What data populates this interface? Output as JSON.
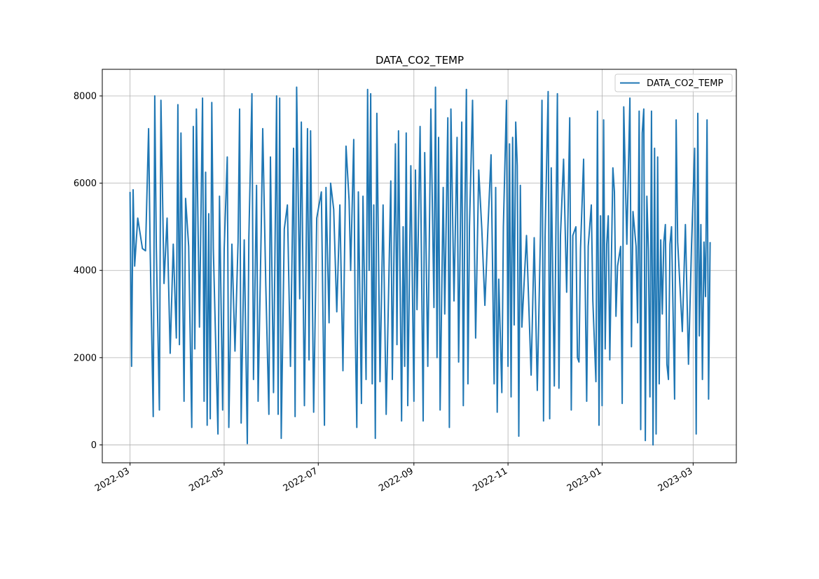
{
  "chart_data": {
    "type": "line",
    "title": "DATA_CO2_TEMP",
    "xlabel": "",
    "ylabel": "",
    "x_origin": "2022-03-01",
    "x_unit": "days since x_origin",
    "xlim": [
      "2022-02-11",
      "2023-03-29"
    ],
    "ylim": [
      -410,
      8610
    ],
    "grid": true,
    "legend": {
      "entries": [
        "DATA_CO2_TEMP"
      ],
      "placement": "top-right"
    },
    "x_ticks": [
      {
        "label": "2022-03",
        "day": 0
      },
      {
        "label": "2022-05",
        "day": 61
      },
      {
        "label": "2022-07",
        "day": 122
      },
      {
        "label": "2022-09",
        "day": 184
      },
      {
        "label": "2022-11",
        "day": 245
      },
      {
        "label": "2023-01",
        "day": 306
      },
      {
        "label": "2023-03",
        "day": 365
      }
    ],
    "y_ticks": [
      0,
      2000,
      4000,
      6000,
      8000
    ],
    "series": [
      {
        "name": "DATA_CO2_TEMP",
        "color": "#1f77b4",
        "points": [
          [
            0,
            5800
          ],
          [
            1,
            1800
          ],
          [
            2,
            5850
          ],
          [
            3,
            4100
          ],
          [
            5,
            5200
          ],
          [
            8,
            4500
          ],
          [
            10,
            4450
          ],
          [
            12,
            7250
          ],
          [
            13,
            4500
          ],
          [
            15,
            650
          ],
          [
            16,
            8000
          ],
          [
            17,
            4550
          ],
          [
            19,
            800
          ],
          [
            20,
            7900
          ],
          [
            22,
            3700
          ],
          [
            24,
            5200
          ],
          [
            26,
            2100
          ],
          [
            28,
            4600
          ],
          [
            30,
            2450
          ],
          [
            31,
            7800
          ],
          [
            32,
            2300
          ],
          [
            33,
            7150
          ],
          [
            35,
            1000
          ],
          [
            36,
            5650
          ],
          [
            38,
            4550
          ],
          [
            40,
            400
          ],
          [
            41,
            7300
          ],
          [
            42,
            2200
          ],
          [
            43,
            7700
          ],
          [
            45,
            2700
          ],
          [
            47,
            7950
          ],
          [
            48,
            1000
          ],
          [
            49,
            6250
          ],
          [
            50,
            450
          ],
          [
            51,
            5300
          ],
          [
            52,
            600
          ],
          [
            53,
            7850
          ],
          [
            54,
            4500
          ],
          [
            57,
            250
          ],
          [
            58,
            5700
          ],
          [
            60,
            800
          ],
          [
            61,
            4500
          ],
          [
            63,
            6600
          ],
          [
            64,
            400
          ],
          [
            66,
            4600
          ],
          [
            68,
            2150
          ],
          [
            70,
            4650
          ],
          [
            71,
            7700
          ],
          [
            72,
            500
          ],
          [
            74,
            4700
          ],
          [
            76,
            30
          ],
          [
            77,
            4750
          ],
          [
            79,
            8050
          ],
          [
            80,
            1500
          ],
          [
            82,
            5950
          ],
          [
            83,
            1000
          ],
          [
            85,
            4900
          ],
          [
            86,
            7250
          ],
          [
            88,
            3650
          ],
          [
            90,
            700
          ],
          [
            91,
            6600
          ],
          [
            93,
            1200
          ],
          [
            95,
            8000
          ],
          [
            96,
            700
          ],
          [
            97,
            7950
          ],
          [
            98,
            150
          ],
          [
            100,
            4950
          ],
          [
            102,
            5500
          ],
          [
            104,
            1800
          ],
          [
            106,
            6800
          ],
          [
            107,
            650
          ],
          [
            108,
            8200
          ],
          [
            110,
            3350
          ],
          [
            111,
            7400
          ],
          [
            113,
            900
          ],
          [
            115,
            7250
          ],
          [
            116,
            1950
          ],
          [
            117,
            7200
          ],
          [
            119,
            750
          ],
          [
            121,
            5200
          ],
          [
            124,
            5800
          ],
          [
            126,
            450
          ],
          [
            127,
            5900
          ],
          [
            129,
            2800
          ],
          [
            130,
            6000
          ],
          [
            132,
            5400
          ],
          [
            134,
            3050
          ],
          [
            136,
            5500
          ],
          [
            138,
            1700
          ],
          [
            140,
            6850
          ],
          [
            142,
            5600
          ],
          [
            143,
            4000
          ],
          [
            145,
            7000
          ],
          [
            146,
            2600
          ],
          [
            147,
            400
          ],
          [
            148,
            5800
          ],
          [
            150,
            950
          ],
          [
            151,
            5700
          ],
          [
            153,
            1500
          ],
          [
            154,
            8150
          ],
          [
            155,
            4000
          ],
          [
            156,
            8050
          ],
          [
            157,
            1400
          ],
          [
            158,
            5500
          ],
          [
            159,
            150
          ],
          [
            160,
            7600
          ],
          [
            162,
            1450
          ],
          [
            164,
            5500
          ],
          [
            166,
            700
          ],
          [
            169,
            6050
          ],
          [
            170,
            1500
          ],
          [
            172,
            6900
          ],
          [
            173,
            2300
          ],
          [
            174,
            7200
          ],
          [
            176,
            550
          ],
          [
            177,
            5000
          ],
          [
            178,
            1800
          ],
          [
            179,
            7150
          ],
          [
            180,
            900
          ],
          [
            182,
            6400
          ],
          [
            184,
            1000
          ],
          [
            185,
            6300
          ],
          [
            186,
            3100
          ],
          [
            188,
            7300
          ],
          [
            190,
            550
          ],
          [
            191,
            6700
          ],
          [
            193,
            1800
          ],
          [
            195,
            7700
          ],
          [
            197,
            3150
          ],
          [
            198,
            8200
          ],
          [
            199,
            2000
          ],
          [
            200,
            7050
          ],
          [
            201,
            800
          ],
          [
            203,
            5900
          ],
          [
            204,
            3000
          ],
          [
            206,
            7500
          ],
          [
            207,
            400
          ],
          [
            208,
            7700
          ],
          [
            210,
            3300
          ],
          [
            212,
            7050
          ],
          [
            213,
            1900
          ],
          [
            215,
            7400
          ],
          [
            216,
            900
          ],
          [
            217,
            5300
          ],
          [
            218,
            8150
          ],
          [
            219,
            1400
          ],
          [
            220,
            5000
          ],
          [
            222,
            7900
          ],
          [
            224,
            2450
          ],
          [
            226,
            6300
          ],
          [
            228,
            4950
          ],
          [
            230,
            3200
          ],
          [
            232,
            5000
          ],
          [
            234,
            6650
          ],
          [
            236,
            1400
          ],
          [
            237,
            5900
          ],
          [
            238,
            750
          ],
          [
            239,
            3800
          ],
          [
            241,
            1200
          ],
          [
            242,
            5000
          ],
          [
            244,
            7900
          ],
          [
            245,
            1800
          ],
          [
            246,
            6900
          ],
          [
            247,
            1100
          ],
          [
            248,
            7050
          ],
          [
            249,
            2750
          ],
          [
            250,
            7400
          ],
          [
            251,
            6400
          ],
          [
            252,
            200
          ],
          [
            253,
            5950
          ],
          [
            254,
            2700
          ],
          [
            257,
            4800
          ],
          [
            260,
            1600
          ],
          [
            262,
            4750
          ],
          [
            264,
            1250
          ],
          [
            266,
            4800
          ],
          [
            267,
            7900
          ],
          [
            268,
            550
          ],
          [
            269,
            4750
          ],
          [
            271,
            8100
          ],
          [
            272,
            600
          ],
          [
            273,
            6350
          ],
          [
            275,
            1350
          ],
          [
            276,
            4800
          ],
          [
            277,
            8050
          ],
          [
            278,
            1300
          ],
          [
            279,
            4800
          ],
          [
            281,
            6550
          ],
          [
            283,
            3500
          ],
          [
            285,
            7500
          ],
          [
            286,
            800
          ],
          [
            287,
            4800
          ],
          [
            289,
            5000
          ],
          [
            290,
            2000
          ],
          [
            291,
            1900
          ],
          [
            292,
            4500
          ],
          [
            294,
            6550
          ],
          [
            296,
            1000
          ],
          [
            297,
            4550
          ],
          [
            299,
            5500
          ],
          [
            300,
            3300
          ],
          [
            302,
            1450
          ],
          [
            303,
            7650
          ],
          [
            304,
            450
          ],
          [
            305,
            5250
          ],
          [
            306,
            900
          ],
          [
            307,
            7450
          ],
          [
            308,
            2200
          ],
          [
            309,
            4600
          ],
          [
            310,
            5250
          ],
          [
            311,
            1950
          ],
          [
            313,
            6350
          ],
          [
            314,
            5800
          ],
          [
            315,
            2950
          ],
          [
            316,
            4100
          ],
          [
            318,
            4550
          ],
          [
            319,
            950
          ],
          [
            320,
            7750
          ],
          [
            322,
            4600
          ],
          [
            324,
            7950
          ],
          [
            325,
            2250
          ],
          [
            326,
            5350
          ],
          [
            328,
            4550
          ],
          [
            329,
            2800
          ],
          [
            330,
            7650
          ],
          [
            331,
            350
          ],
          [
            332,
            7150
          ],
          [
            333,
            7700
          ],
          [
            334,
            100
          ],
          [
            335,
            5700
          ],
          [
            336,
            4450
          ],
          [
            337,
            1100
          ],
          [
            338,
            7650
          ],
          [
            339,
            0
          ],
          [
            340,
            6800
          ],
          [
            341,
            250
          ],
          [
            342,
            6600
          ],
          [
            343,
            1400
          ],
          [
            344,
            4700
          ],
          [
            345,
            3000
          ],
          [
            346,
            4650
          ],
          [
            347,
            5050
          ],
          [
            348,
            1850
          ],
          [
            349,
            1500
          ],
          [
            350,
            4600
          ],
          [
            351,
            5000
          ],
          [
            353,
            1050
          ],
          [
            354,
            7450
          ],
          [
            355,
            4650
          ],
          [
            358,
            2600
          ],
          [
            360,
            5050
          ],
          [
            362,
            1850
          ],
          [
            364,
            4600
          ],
          [
            366,
            6800
          ],
          [
            367,
            250
          ],
          [
            368,
            7600
          ],
          [
            369,
            2500
          ],
          [
            370,
            5050
          ],
          [
            371,
            1500
          ],
          [
            372,
            4650
          ],
          [
            373,
            3400
          ],
          [
            374,
            7450
          ],
          [
            375,
            1050
          ],
          [
            376,
            4650
          ]
        ]
      }
    ]
  }
}
